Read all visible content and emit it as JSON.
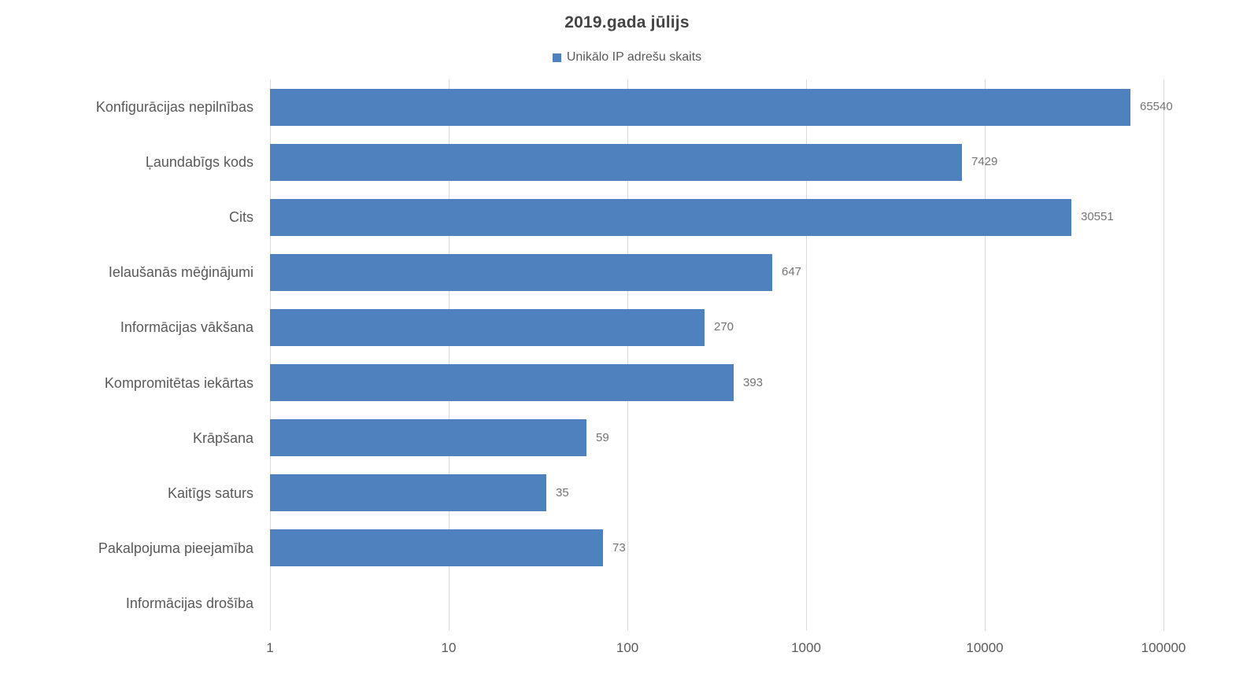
{
  "chart_data": {
    "type": "bar",
    "orientation": "horizontal",
    "title": "2019.gada jūlijs",
    "legend": [
      {
        "label": "Unikālo IP adrešu skaits",
        "color": "#4e81bd",
        "marker": "square"
      }
    ],
    "categories": [
      "Konfigurācijas nepilnības",
      "Ļaundabīgs kods",
      "Cits",
      "Ielaušanās mēģinājumi",
      "Informācijas vākšana",
      "Kompromitētas iekārtas",
      "Krāpšana",
      "Kaitīgs saturs",
      "Pakalpojuma pieejamība",
      "Informācijas drošība"
    ],
    "series": [
      {
        "name": "Unikālo IP adrešu skaits",
        "values": [
          65540,
          7429,
          30551,
          647,
          270,
          393,
          59,
          35,
          73,
          0
        ]
      }
    ],
    "value_labels": [
      "65540",
      "7429",
      "30551",
      "647",
      "270",
      "393",
      "59",
      "35",
      "73",
      ""
    ],
    "x_scale": "log10",
    "xlim": [
      1,
      100000
    ],
    "x_ticks": [
      "1",
      "10",
      "100",
      "1000",
      "10000",
      "100000"
    ],
    "grid": "vertical-decade-gridlines",
    "legend_position": "top-center",
    "bar_color": "#4e81bd",
    "xlabel": "",
    "ylabel": ""
  },
  "colors": {
    "bar": "#4e81bd",
    "gridline": "#d9d9d9",
    "title_text": "#444444",
    "axis_text": "#595959",
    "value_text": "#737373",
    "background": "#ffffff"
  }
}
